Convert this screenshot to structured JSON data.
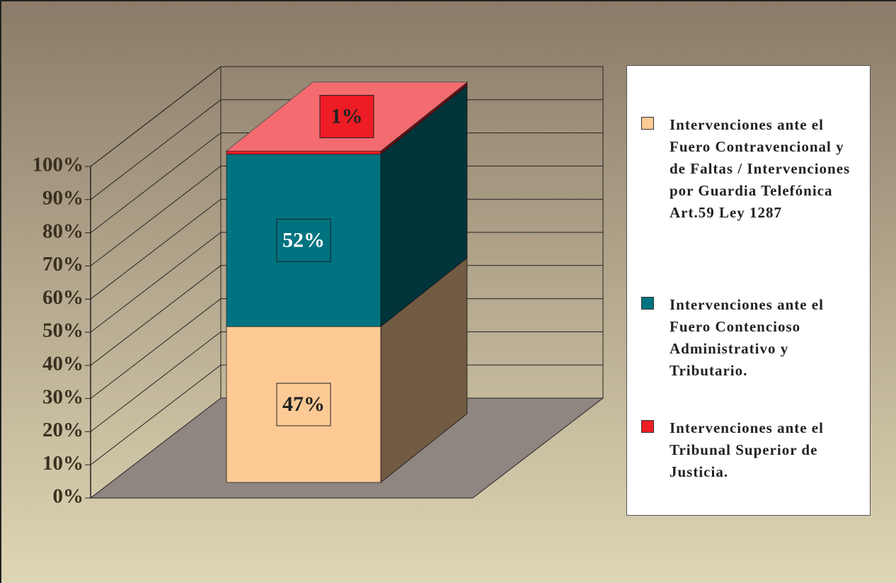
{
  "chart_data": {
    "type": "bar",
    "stacked": true,
    "categories": [
      null
    ],
    "series": [
      {
        "name": "Intervenciones ante el Fuero Contravencional y de Faltas / Intervenciones por Guardia Telefónica Art.59 Ley 1287",
        "color": "#fdca96",
        "values": [
          47
        ],
        "value_labels": [
          "47%"
        ]
      },
      {
        "name": "Intervenciones ante el Fuero Contencioso Administrativo y Tributario.",
        "color": "#007380",
        "values": [
          52
        ],
        "value_labels": [
          "52%"
        ]
      },
      {
        "name": "Intervenciones ante el Tribunal Superior de Justicia.",
        "color": "#ee1c24",
        "values": [
          1
        ],
        "value_labels": [
          "1%"
        ]
      }
    ],
    "ylim": [
      0,
      100
    ],
    "yticks": [
      {
        "value": 0,
        "label": "0%"
      },
      {
        "value": 10,
        "label": "10%"
      },
      {
        "value": 20,
        "label": "20%"
      },
      {
        "value": 30,
        "label": "30%"
      },
      {
        "value": 40,
        "label": "40%"
      },
      {
        "value": 50,
        "label": "50%"
      },
      {
        "value": 60,
        "label": "60%"
      },
      {
        "value": 70,
        "label": "70%"
      },
      {
        "value": 80,
        "label": "80%"
      },
      {
        "value": 90,
        "label": "90%"
      },
      {
        "value": 100,
        "label": "100%"
      }
    ],
    "grid": true,
    "legend": "right"
  }
}
